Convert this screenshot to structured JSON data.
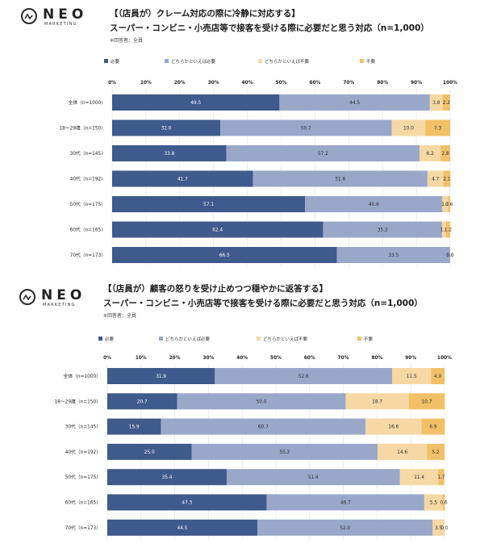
{
  "brand": {
    "name": "NEO",
    "sub": "MARKETING"
  },
  "colors": {
    "c1": "#3f5a8c",
    "c2": "#99a8c9",
    "c3": "#f6d8a4",
    "c4": "#f1c067"
  },
  "chart_data": [
    {
      "type": "bar",
      "orientation": "horizontal-stacked-100",
      "title": "【（店員が）クレーム対応の際に冷静に対応する】",
      "subtitle": "スーパー・コンビニ・小売店等で接客を受ける際に必要だと思う対応（n=1,000）",
      "note": "※回答者：全員",
      "legend": [
        "必要",
        "どちらかといえば必要",
        "どちらかといえば不要",
        "不要"
      ],
      "x_ticks": [
        "0%",
        "10%",
        "20%",
        "30%",
        "40%",
        "50%",
        "60%",
        "70%",
        "80%",
        "90%",
        "100%"
      ],
      "xlim": [
        0,
        100
      ],
      "categories": [
        "全体（n=1000）",
        "18〜29歳（n=150）",
        "30代（n=145）",
        "40代（n=192）",
        "50代（n=175）",
        "60代（n=165）",
        "70代（n=173）"
      ],
      "series": [
        {
          "name": "必要",
          "values": [
            49.5,
            32.0,
            33.8,
            41.7,
            57.1,
            62.4,
            66.5
          ]
        },
        {
          "name": "どちらかといえば必要",
          "values": [
            44.5,
            50.7,
            57.2,
            51.6,
            40.6,
            35.2,
            33.5
          ]
        },
        {
          "name": "どちらかといえば不要",
          "values": [
            3.8,
            10.0,
            6.2,
            4.7,
            1.7,
            1.2,
            0.0
          ]
        },
        {
          "name": "不要",
          "values": [
            2.2,
            7.3,
            2.8,
            2.1,
            0.6,
            1.2,
            0.0
          ]
        }
      ]
    },
    {
      "type": "bar",
      "orientation": "horizontal-stacked-100",
      "title": "【（店員が）顧客の怒りを受け止めつつ穏やかに返答する】",
      "subtitle": "スーパー・コンビニ・小売店等で接客を受ける際に必要だと思う対応（n=1,000）",
      "note": "※回答者：全員",
      "legend": [
        "必要",
        "どちらかといえば必要",
        "どちらかといえば不要",
        "不要"
      ],
      "x_ticks": [
        "0%",
        "10%",
        "20%",
        "30%",
        "40%",
        "50%",
        "60%",
        "70%",
        "80%",
        "90%",
        "100%"
      ],
      "xlim": [
        0,
        100
      ],
      "categories": [
        "全体（n=1000）",
        "18〜29歳（n=150）",
        "30代（n=145）",
        "40代（n=192）",
        "50代（n=175）",
        "60代（n=165）",
        "70代（n=173）"
      ],
      "series": [
        {
          "name": "必要",
          "values": [
            31.9,
            20.7,
            15.9,
            25.0,
            35.4,
            47.3,
            44.5
          ]
        },
        {
          "name": "どちらかといえば必要",
          "values": [
            52.6,
            50.0,
            60.7,
            55.2,
            51.4,
            46.7,
            52.0
          ]
        },
        {
          "name": "どちらかといえば不要",
          "values": [
            11.5,
            18.7,
            16.6,
            14.6,
            11.4,
            5.5,
            3.5
          ]
        },
        {
          "name": "不要",
          "values": [
            4.0,
            10.7,
            6.9,
            5.2,
            1.7,
            0.6,
            0.0
          ]
        }
      ]
    }
  ]
}
